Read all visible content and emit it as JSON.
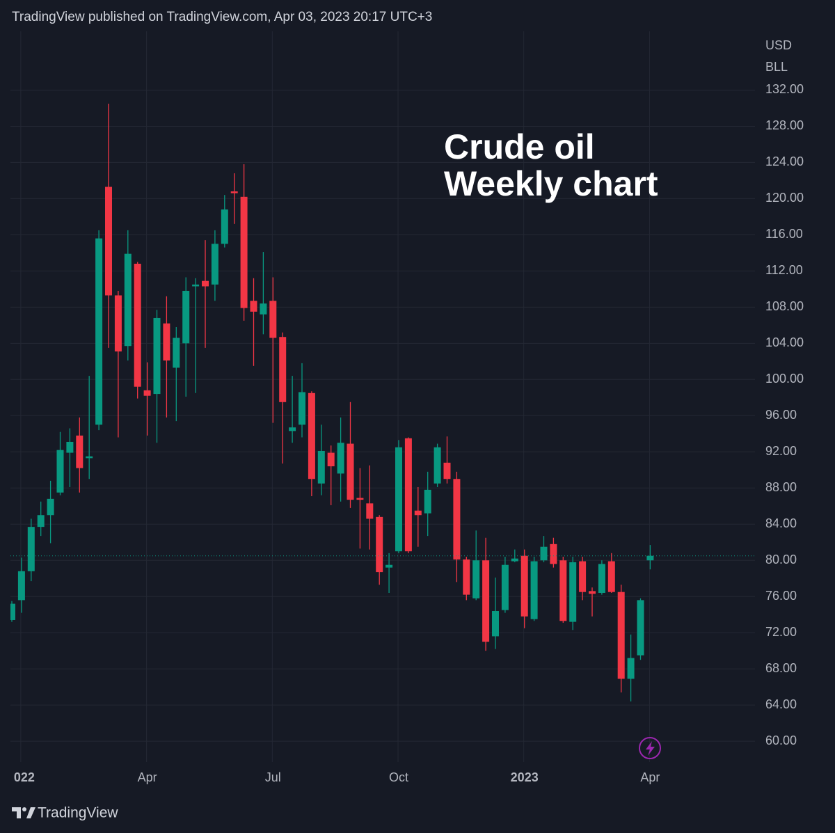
{
  "header": "TradingView published on TradingView.com, Apr 03, 2023 20:17 UTC+3",
  "footer": "TradingView",
  "chart_data": {
    "type": "candlestick",
    "annotation": [
      "Crude oil",
      "Weekly chart"
    ],
    "y_axis_label": [
      "USD",
      "BLL"
    ],
    "up_color": "#089981",
    "down_color": "#f23645",
    "grid": true,
    "categories": [
      null,
      "022",
      null,
      null,
      null,
      null,
      null,
      null,
      null,
      null,
      null,
      null,
      null,
      null,
      "Apr",
      null,
      null,
      null,
      null,
      null,
      null,
      null,
      null,
      null,
      null,
      null,
      null,
      "Jul",
      null,
      null,
      null,
      null,
      null,
      null,
      null,
      null,
      null,
      null,
      null,
      null,
      "Oct",
      null,
      null,
      null,
      null,
      null,
      null,
      null,
      null,
      null,
      null,
      null,
      null,
      "2023",
      null,
      null,
      null,
      null,
      null,
      null,
      null,
      null,
      null,
      null,
      null,
      null,
      "Apr"
    ],
    "open": [
      73.4,
      75.6,
      78.8,
      83.7,
      85,
      87.5,
      91.9,
      93.8,
      91.3,
      95,
      121.3,
      109.3,
      103.7,
      112.8,
      98.8,
      98.4,
      106.2,
      101.3,
      104,
      110.3,
      110.9,
      110.5,
      115,
      120.8,
      120.2,
      108.7,
      107.2,
      108.7,
      104.7,
      94.3,
      95,
      98.5,
      88.5,
      91.9,
      89.6,
      92.9,
      86.9,
      86.3,
      84.8,
      79.2,
      81,
      93.5,
      85.5,
      85.2,
      88.5,
      90.8,
      89,
      80.1,
      75.8,
      80,
      71.6,
      74.5,
      79.9,
      80.5,
      73.5,
      80,
      81.8,
      80,
      73.2,
      79.9,
      76.6,
      76.4,
      79.9,
      76.5,
      66.9,
      69.5,
      80
    ],
    "high": [
      75.5,
      80.3,
      84.6,
      86.5,
      88.8,
      94.2,
      94.6,
      95.8,
      100.4,
      116.5,
      130.5,
      109.8,
      116.5,
      113,
      101.9,
      107.7,
      109.2,
      105.8,
      111.3,
      111.2,
      115.4,
      116.5,
      120.4,
      122.8,
      123.8,
      111.2,
      114.1,
      111.3,
      105.2,
      100.4,
      101.8,
      98.7,
      95,
      92.7,
      95.8,
      97.5,
      90.2,
      90.5,
      85,
      80.8,
      93.3,
      93.6,
      88.1,
      89.8,
      92.9,
      93.7,
      89.8,
      80.4,
      83.3,
      82.5,
      78.1,
      80.4,
      81.2,
      81.2,
      80.4,
      82.7,
      82.5,
      80.4,
      80.4,
      80.4,
      77,
      80,
      80.8,
      77.3,
      71.8,
      75.8,
      81.7
    ],
    "low": [
      73.2,
      74.2,
      77.7,
      82.7,
      81.9,
      87.2,
      88.1,
      87.5,
      89,
      94.4,
      103.5,
      93.6,
      102.1,
      97.9,
      93.8,
      93,
      95.8,
      95.4,
      98.1,
      98.5,
      103.5,
      108.7,
      114.6,
      117.2,
      106.5,
      101.5,
      105,
      95.2,
      90.7,
      93,
      93.6,
      87.1,
      87.2,
      86.1,
      86.5,
      85.8,
      81.3,
      81.2,
      77.3,
      76.4,
      80.8,
      80.8,
      81.5,
      82.7,
      88.1,
      88.5,
      77.6,
      75.6,
      75.6,
      70,
      70.2,
      74.2,
      79.8,
      72.5,
      73.3,
      79.8,
      79.2,
      73.1,
      72.3,
      75.6,
      73.8,
      76.2,
      76.4,
      65.4,
      64.4,
      69,
      79
    ],
    "close": [
      75.2,
      78.8,
      83.7,
      85,
      86.8,
      92.2,
      93.1,
      90.2,
      91.5,
      115.6,
      109.3,
      103.1,
      113.9,
      99.2,
      98.2,
      106.8,
      102.1,
      104.6,
      109.8,
      110.5,
      110.3,
      115,
      118.8,
      120.6,
      107.9,
      107.5,
      108.4,
      104.6,
      97.5,
      94.7,
      98.6,
      89,
      92.1,
      90.4,
      93,
      86.7,
      86.7,
      84.6,
      78.7,
      79.5,
      92.5,
      81,
      85,
      87.8,
      92.5,
      89,
      80.1,
      76.2,
      80,
      71,
      74.4,
      79.5,
      80.2,
      73.8,
      79.9,
      81.5,
      79.6,
      73.3,
      79.8,
      76.5,
      76.3,
      79.6,
      76.5,
      66.9,
      69.2,
      75.6,
      80.5
    ],
    "ylim": [
      57.7,
      138.5
    ],
    "yticks": [
      {
        "value": 60,
        "label": "60.00"
      },
      {
        "value": 64,
        "label": "64.00"
      },
      {
        "value": 68,
        "label": "68.00"
      },
      {
        "value": 72,
        "label": "72.00"
      },
      {
        "value": 76,
        "label": "76.00"
      },
      {
        "value": 80,
        "label": "80.00"
      },
      {
        "value": 84,
        "label": "84.00"
      },
      {
        "value": 88,
        "label": "88.00"
      },
      {
        "value": 92,
        "label": "92.00"
      },
      {
        "value": 96,
        "label": "96.00"
      },
      {
        "value": 100,
        "label": "100.00"
      },
      {
        "value": 104,
        "label": "104.00"
      },
      {
        "value": 108,
        "label": "108.00"
      },
      {
        "value": 112,
        "label": "112.00"
      },
      {
        "value": 116,
        "label": "116.00"
      },
      {
        "value": 120,
        "label": "120.00"
      },
      {
        "value": 124,
        "label": "124.00"
      },
      {
        "value": 128,
        "label": "128.00"
      },
      {
        "value": 132,
        "label": "132.00"
      }
    ]
  }
}
